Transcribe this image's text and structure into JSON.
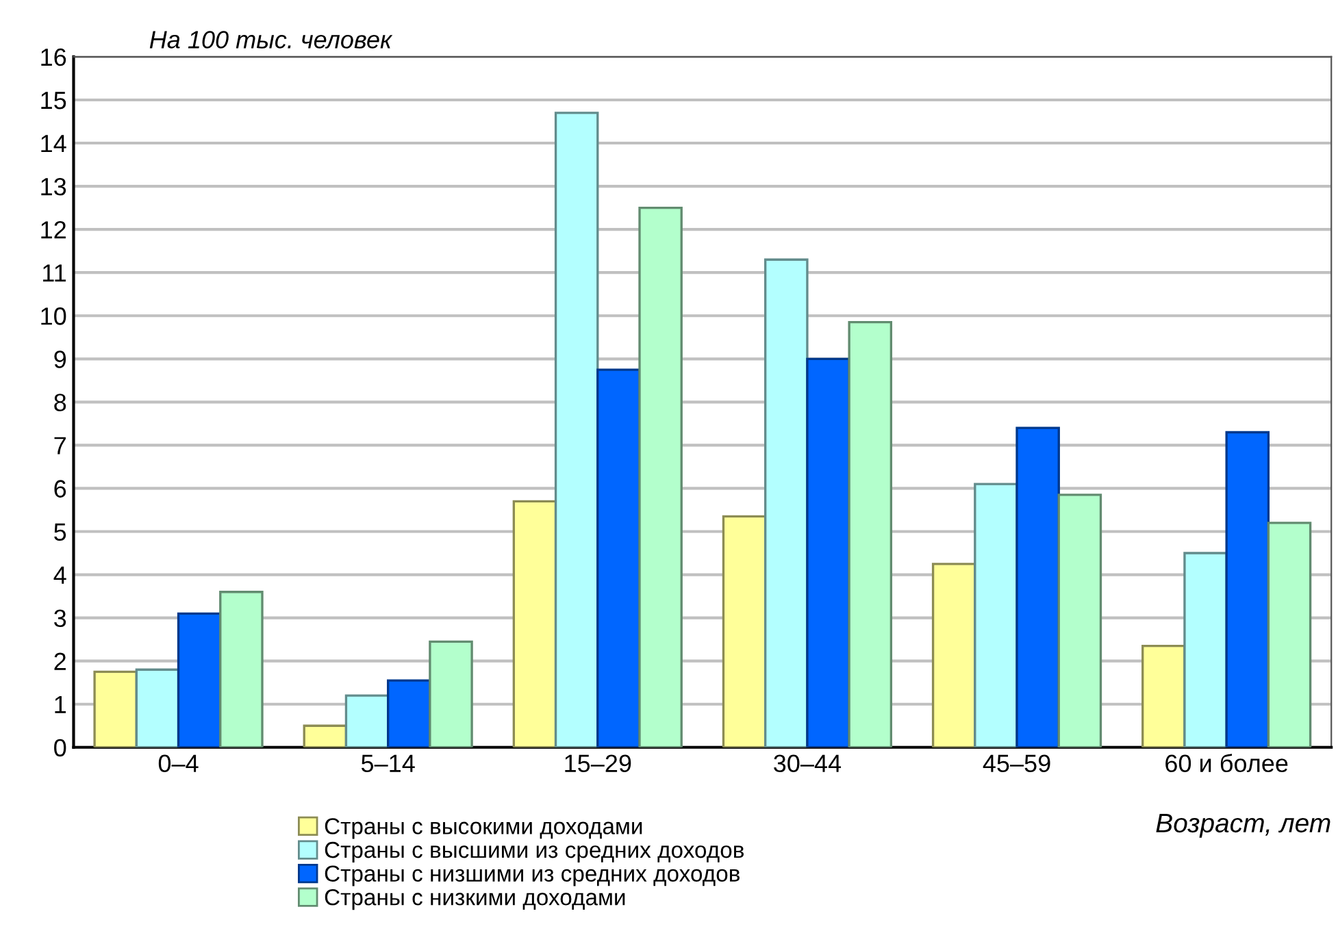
{
  "chart_data": {
    "type": "bar",
    "ylabel": "На 100 тыс. человек",
    "xlabel": "Возраст, лет",
    "categories": [
      "0–4",
      "5–14",
      "15–29",
      "30–44",
      "45–59",
      "60 и более"
    ],
    "series": [
      {
        "name": "Страны с высокими доходами",
        "color": "#ffff99",
        "values": [
          1.75,
          0.5,
          5.7,
          5.35,
          4.25,
          2.35
        ]
      },
      {
        "name": "Страны с высшими из средних доходов",
        "color": "#b3ffff",
        "values": [
          1.8,
          1.2,
          14.7,
          11.3,
          6.1,
          4.5
        ]
      },
      {
        "name": "Страны с низшими из средних доходов",
        "color": "#0066ff",
        "values": [
          3.1,
          1.55,
          8.75,
          9.0,
          7.4,
          7.3
        ]
      },
      {
        "name": "Страны с низкими доходами",
        "color": "#b3ffcc",
        "values": [
          3.6,
          2.45,
          12.5,
          9.85,
          5.85,
          5.2
        ]
      }
    ],
    "ylim": [
      0,
      16
    ],
    "yticks": [
      0,
      1,
      2,
      3,
      4,
      5,
      6,
      7,
      8,
      9,
      10,
      11,
      12,
      13,
      14,
      15,
      16
    ],
    "grid": "y",
    "legend": "bottom left"
  }
}
